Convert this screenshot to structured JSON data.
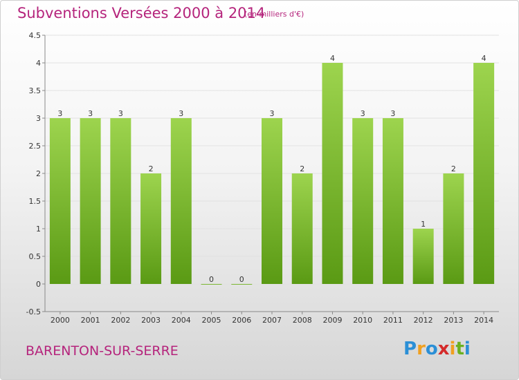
{
  "header": {
    "title": "Subventions Versées 2000 à 2014",
    "unit": "(en milliers d'€)"
  },
  "footer": {
    "commune": "BARENTON-SUR-SERRE",
    "logo_letters": [
      "P",
      "r",
      "o",
      "x",
      "i",
      "t",
      "i"
    ],
    "logo_colors": [
      "#2b8fd6",
      "#f0a020",
      "#2b8fd6",
      "#d42a2a",
      "#f0a020",
      "#6ab020",
      "#2b8fd6"
    ]
  },
  "colors": {
    "title": "#b5247c",
    "bar_top": "#9dd44e",
    "bar_bottom": "#5a9a14",
    "grid": "#e2e2e2"
  },
  "chart_data": {
    "type": "bar",
    "title": "Subventions Versées 2000 à 2014",
    "subtitle": "(en milliers d'€)",
    "categories": [
      "2000",
      "2001",
      "2002",
      "2003",
      "2004",
      "2005",
      "2006",
      "2007",
      "2008",
      "2009",
      "2010",
      "2011",
      "2012",
      "2013",
      "2014"
    ],
    "values": [
      3,
      3,
      3,
      2,
      3,
      0,
      0,
      3,
      2,
      4,
      3,
      3,
      1,
      2,
      4
    ],
    "ylim": [
      -0.5,
      4.5
    ],
    "yticks": [
      -0.5,
      0,
      0.5,
      1,
      1.5,
      2,
      2.5,
      3,
      3.5,
      4,
      4.5
    ],
    "ytick_labels": [
      "-0.5",
      "0",
      "0.5",
      "1",
      "1.5",
      "2",
      "2.5",
      "3",
      "3.5",
      "4",
      "4.5"
    ],
    "grid": true,
    "legend": "none"
  }
}
